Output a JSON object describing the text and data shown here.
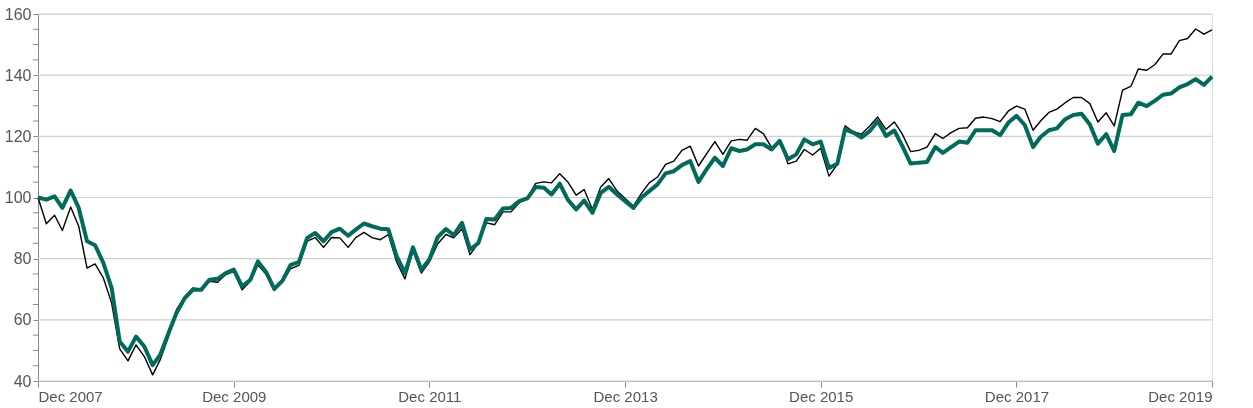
{
  "chart_data": {
    "type": "line",
    "x": [
      "2007-12",
      "2008-01",
      "2008-02",
      "2008-03",
      "2008-04",
      "2008-05",
      "2008-06",
      "2008-07",
      "2008-08",
      "2008-09",
      "2008-10",
      "2008-11",
      "2008-12",
      "2009-01",
      "2009-02",
      "2009-03",
      "2009-04",
      "2009-05",
      "2009-06",
      "2009-07",
      "2009-08",
      "2009-09",
      "2009-10",
      "2009-11",
      "2009-12",
      "2010-01",
      "2010-02",
      "2010-03",
      "2010-04",
      "2010-05",
      "2010-06",
      "2010-07",
      "2010-08",
      "2010-09",
      "2010-10",
      "2010-11",
      "2010-12",
      "2011-01",
      "2011-02",
      "2011-03",
      "2011-04",
      "2011-05",
      "2011-06",
      "2011-07",
      "2011-08",
      "2011-09",
      "2011-10",
      "2011-11",
      "2011-12",
      "2012-01",
      "2012-02",
      "2012-03",
      "2012-04",
      "2012-05",
      "2012-06",
      "2012-07",
      "2012-08",
      "2012-09",
      "2012-10",
      "2012-11",
      "2012-12",
      "2013-01",
      "2013-02",
      "2013-03",
      "2013-04",
      "2013-05",
      "2013-06",
      "2013-07",
      "2013-08",
      "2013-09",
      "2013-10",
      "2013-11",
      "2013-12",
      "2014-01",
      "2014-02",
      "2014-03",
      "2014-04",
      "2014-05",
      "2014-06",
      "2014-07",
      "2014-08",
      "2014-09",
      "2014-10",
      "2014-11",
      "2014-12",
      "2015-01",
      "2015-02",
      "2015-03",
      "2015-04",
      "2015-05",
      "2015-06",
      "2015-07",
      "2015-08",
      "2015-09",
      "2015-10",
      "2015-11",
      "2015-12",
      "2016-01",
      "2016-02",
      "2016-03",
      "2016-04",
      "2016-05",
      "2016-06",
      "2016-07",
      "2016-08",
      "2016-09",
      "2016-10",
      "2016-11",
      "2016-12",
      "2017-01",
      "2017-02",
      "2017-03",
      "2017-04",
      "2017-05",
      "2017-06",
      "2017-07",
      "2017-08",
      "2017-09",
      "2017-10",
      "2017-11",
      "2017-12",
      "2018-01",
      "2018-02",
      "2018-03",
      "2018-04",
      "2018-05",
      "2018-06",
      "2018-07",
      "2018-08",
      "2018-09",
      "2018-10",
      "2018-11",
      "2018-12",
      "2019-01",
      "2019-02",
      "2019-03",
      "2019-04",
      "2019-05",
      "2019-06",
      "2019-07",
      "2019-08",
      "2019-09",
      "2019-10",
      "2019-11",
      "2019-12"
    ],
    "xlim": [
      "2007-12",
      "2019-12"
    ],
    "ylim": [
      40,
      160
    ],
    "xticks": [
      {
        "value": "2007-12",
        "label": "Dec 2007"
      },
      {
        "value": "2009-12",
        "label": "Dec 2009"
      },
      {
        "value": "2011-12",
        "label": "Dec 2011"
      },
      {
        "value": "2013-12",
        "label": "Dec 2013"
      },
      {
        "value": "2015-12",
        "label": "Dec 2015"
      },
      {
        "value": "2017-12",
        "label": "Dec 2017"
      },
      {
        "value": "2019-12",
        "label": "Dec 2019"
      }
    ],
    "yticks": [
      40,
      {
        "value": 45,
        "label": null
      },
      {
        "value": 50,
        "label": null
      },
      {
        "value": 55,
        "label": null
      },
      60,
      {
        "value": 65,
        "label": null
      },
      {
        "value": 70,
        "label": null
      },
      {
        "value": 75,
        "label": null
      },
      80,
      {
        "value": 85,
        "label": null
      },
      {
        "value": 90,
        "label": null
      },
      {
        "value": 95,
        "label": null
      },
      100,
      {
        "value": 105,
        "label": null
      },
      {
        "value": 110,
        "label": null
      },
      {
        "value": 115,
        "label": null
      },
      120,
      {
        "value": 125,
        "label": null
      },
      {
        "value": 130,
        "label": null
      },
      {
        "value": 135,
        "label": null
      },
      140,
      {
        "value": 145,
        "label": null
      },
      {
        "value": 150,
        "label": null
      },
      {
        "value": 155,
        "label": null
      },
      160
    ],
    "grid": "y",
    "legend": false,
    "marker": "none",
    "line_style": "solid",
    "series": [
      {
        "color": "#000000",
        "values": [
          100,
          91.4,
          94.2,
          89.2,
          96.9,
          90.6,
          76.9,
          78.3,
          73.7,
          65.5,
          50.5,
          46.6,
          51.8,
          48,
          42,
          46.9,
          54.5,
          63.3,
          67.6,
          70.4,
          70,
          72.6,
          72.3,
          74.8,
          75.8,
          69.8,
          72.6,
          78,
          74.8,
          69.6,
          72.4,
          76.7,
          77.8,
          85.7,
          86.9,
          83.7,
          86.9,
          86.8,
          83.7,
          86.9,
          88.6,
          86.9,
          86.2,
          87.9,
          78.9,
          73.4,
          82.6,
          75.3,
          78.9,
          84.8,
          87.9,
          86.8,
          89.8,
          81.3,
          85.1,
          91.7,
          91.1,
          95.3,
          95.3,
          98.3,
          99.9,
          104.6,
          105.1,
          104.8,
          107.8,
          105.1,
          100.8,
          102.6,
          96.1,
          103.4,
          106.2,
          102.1,
          99.7,
          97.2,
          101.5,
          104.8,
          106.7,
          110.8,
          111.9,
          115.4,
          116.8,
          110.3,
          114.3,
          118.3,
          114.1,
          118.5,
          119,
          118.7,
          122.6,
          120.9,
          116.3,
          118.5,
          111,
          111.9,
          115.7,
          113.9,
          116.1,
          107,
          110.8,
          123.4,
          121.5,
          120.7,
          123.4,
          126.3,
          122.3,
          124.7,
          120.7,
          115,
          115.4,
          116.5,
          120.9,
          119.3,
          121.2,
          122.6,
          122.8,
          125.9,
          126.3,
          125.8,
          124.8,
          128.3,
          129.9,
          128.9,
          122,
          125,
          127.8,
          128.9,
          131,
          132.7,
          132.7,
          130.7,
          124.7,
          127.7,
          123.4,
          135.1,
          136.3,
          142,
          141.6,
          143.4,
          146.9,
          146.9,
          151.3,
          152,
          155.1,
          153.4,
          154.8
        ]
      },
      {
        "color": "#006b5b",
        "values": [
          100,
          99.3,
          100.4,
          96.6,
          102.3,
          96.6,
          85.7,
          84.4,
          78.6,
          70.4,
          52.9,
          49.6,
          54.5,
          51.3,
          45.2,
          48.5,
          55.6,
          62.2,
          67.1,
          69.8,
          69.8,
          73.1,
          73.4,
          75.3,
          76.4,
          70.9,
          73.1,
          79.1,
          75.6,
          70.1,
          72.8,
          78,
          78.9,
          86.8,
          88.4,
          85.7,
          88.7,
          89.8,
          87.5,
          89.5,
          91.5,
          90.6,
          89.8,
          89.6,
          80.8,
          75.3,
          83.7,
          76.4,
          79.7,
          87,
          89.7,
          87.7,
          91.7,
          83,
          85.1,
          93,
          92.8,
          96.4,
          96.6,
          98.8,
          99.7,
          103.4,
          103.2,
          101,
          104.5,
          99.3,
          96.1,
          99,
          95,
          101.5,
          103.5,
          101,
          98.8,
          96.6,
          100.1,
          102.1,
          104.3,
          107.9,
          108.6,
          110.6,
          111.9,
          105.1,
          109.2,
          113,
          110.3,
          116.1,
          115.2,
          115.7,
          117.4,
          117.4,
          115.7,
          118.5,
          112.5,
          114.1,
          119,
          117.4,
          118.3,
          109.7,
          111,
          122.3,
          121.2,
          119.6,
          121.7,
          125,
          120.1,
          121.9,
          116.8,
          111.1,
          111.4,
          111.6,
          116.5,
          114.6,
          116.5,
          118.3,
          117.9,
          122,
          122,
          122,
          120.4,
          124.5,
          126.7,
          123.7,
          116.5,
          119.8,
          122,
          122.6,
          125.6,
          127,
          127.4,
          123.9,
          117.6,
          120.7,
          115.2,
          127,
          127.2,
          131,
          129.9,
          131.6,
          133.6,
          134,
          136,
          137.1,
          138.7,
          136.8,
          139.5
        ]
      }
    ]
  }
}
